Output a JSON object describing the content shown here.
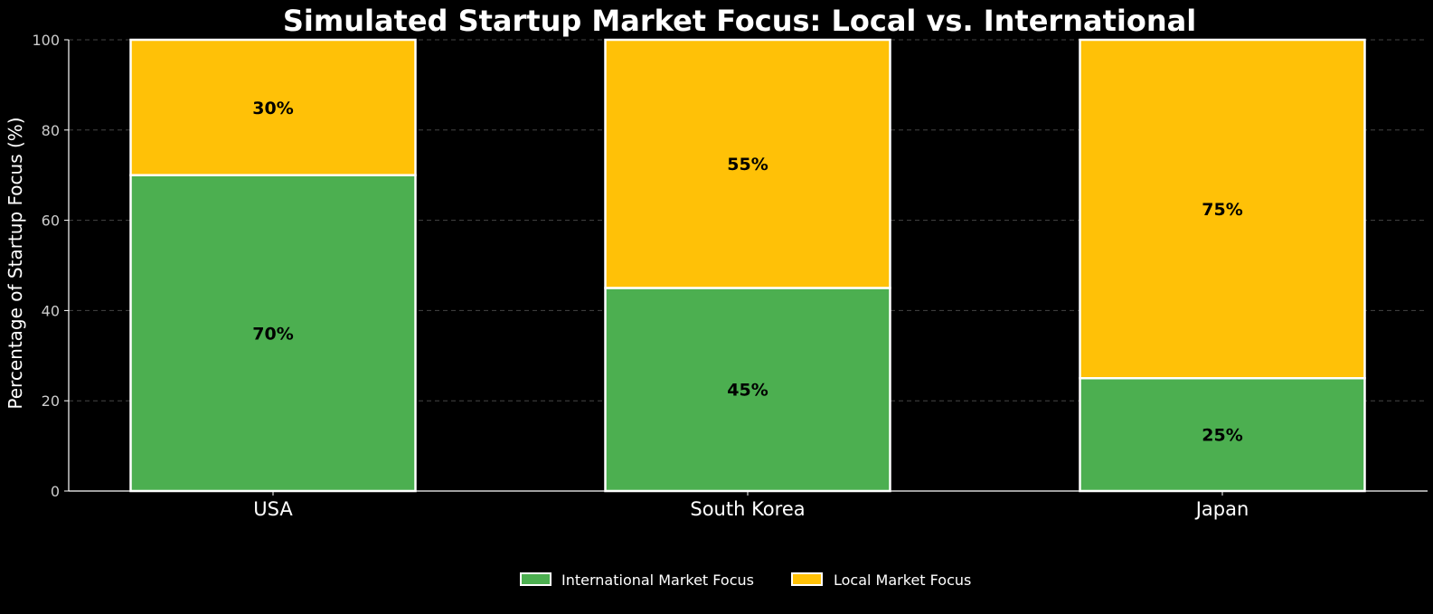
{
  "chart_data": {
    "type": "bar",
    "stacked": true,
    "title": "Simulated Startup Market Focus: Local vs. International",
    "xlabel": "",
    "ylabel": "Percentage of Startup Focus (%)",
    "ylim": [
      0,
      100
    ],
    "yticks": [
      0,
      20,
      40,
      60,
      80,
      100
    ],
    "grid": true,
    "legend_position": "bottom-center",
    "categories": [
      "USA",
      "South Korea",
      "Japan"
    ],
    "series": [
      {
        "name": "International Market Focus",
        "color": "#4caf50",
        "values": [
          70,
          45,
          25
        ],
        "labels": [
          "70%",
          "45%",
          "25%"
        ]
      },
      {
        "name": "Local Market Focus",
        "color": "#ffc107",
        "values": [
          30,
          55,
          75
        ],
        "labels": [
          "30%",
          "55%",
          "75%"
        ]
      }
    ],
    "colors": {
      "background": "#000000",
      "axis": "#ffffff",
      "grid": "#444444",
      "bar_edge": "#ffffff",
      "data_label": "#000000"
    }
  }
}
